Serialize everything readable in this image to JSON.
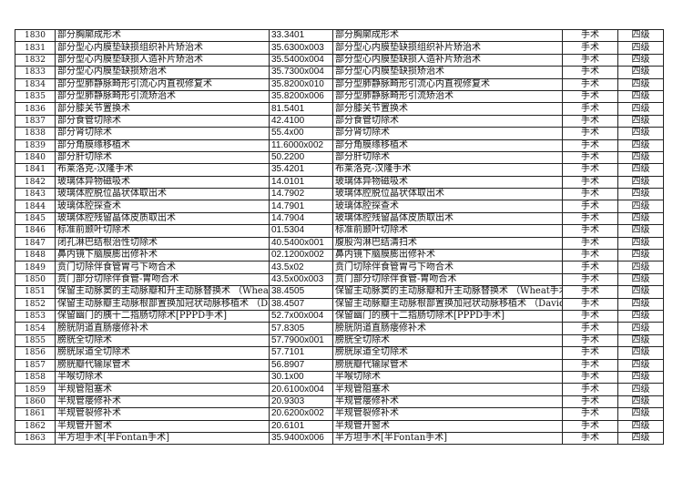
{
  "rows": [
    [
      "1830",
      "部分胸廓成形术",
      "33.3401",
      "部分胸廓成形术",
      "手术",
      "四级"
    ],
    [
      "1831",
      "部分型心内膜垫缺损组织补片矫治术",
      "35.6300x003",
      "部分型心内膜垫缺损组织补片矫治术",
      "手术",
      "四级"
    ],
    [
      "1832",
      "部分型心内膜垫缺损人造补片矫治术",
      "35.5400x004",
      "部分型心内膜垫缺损人造补片矫治术",
      "手术",
      "四级"
    ],
    [
      "1833",
      "部分型心内膜垫缺损矫治术",
      "35.7300x004",
      "部分型心内膜垫缺损矫治术",
      "手术",
      "四级"
    ],
    [
      "1834",
      "部分型肺静脉畸形引流心内直视修复术",
      "35.8200x010",
      "部分型肺静脉畸形引流心内直视修复术",
      "手术",
      "四级"
    ],
    [
      "1835",
      "部分型肺静脉畸形引流矫治术",
      "35.8200x006",
      "部分型肺静脉畸形引流矫治术",
      "手术",
      "四级"
    ],
    [
      "1836",
      "部分膝关节置换术",
      "81.5401",
      "部分膝关节置换术",
      "手术",
      "四级"
    ],
    [
      "1837",
      "部分食管切除术",
      "42.4100",
      "部分食管切除术",
      "手术",
      "四级"
    ],
    [
      "1838",
      "部分肾切除术",
      "55.4x00",
      "部分肾切除术",
      "手术",
      "四级"
    ],
    [
      "1839",
      "部分角膜缘移植术",
      "11.6000x002",
      "部分角膜缘移植术",
      "手术",
      "四级"
    ],
    [
      "1840",
      "部分肝切除术",
      "50.2200",
      "部分肝切除术",
      "手术",
      "四级"
    ],
    [
      "1841",
      "布莱洛克-汉隆手术",
      "35.4201",
      "布莱洛克-汉隆手术",
      "手术",
      "四级"
    ],
    [
      "1842",
      "玻璃体异物磁吸术",
      "14.0101",
      "玻璃体异物磁吸术",
      "手术",
      "四级"
    ],
    [
      "1843",
      "玻璃体腔脱位晶状体取出术",
      "14.7902",
      "玻璃体腔脱位晶状体取出术",
      "手术",
      "四级"
    ],
    [
      "1844",
      "玻璃体腔探查术",
      "14.7901",
      "玻璃体腔探查术",
      "手术",
      "四级"
    ],
    [
      "1845",
      "玻璃体腔残留晶体皮质取出术",
      "14.7904",
      "玻璃体腔残留晶体皮质取出术",
      "手术",
      "四级"
    ],
    [
      "1846",
      "标准前颞叶切除术",
      "01.5304",
      "标准前颞叶切除术",
      "手术",
      "四级"
    ],
    [
      "1847",
      "闭孔淋巴结根治性切除术",
      "40.5400x001",
      "腹股沟淋巴结清扫术",
      "手术",
      "四级"
    ],
    [
      "1848",
      "鼻内镜下脑膜膨出修补术",
      "02.1200x002",
      "鼻内镜下脑膜膨出修补术",
      "手术",
      "四级"
    ],
    [
      "1849",
      "贲门切除伴食管胃弓下吻合术",
      "43.5x02",
      "贲门切除伴食管胃弓下吻合术",
      "手术",
      "四级"
    ],
    [
      "1850",
      "贲门部分切除伴食管-胃吻合术",
      "43.5x00x003",
      "贲门部分切除伴食管-胃吻合术",
      "手术",
      "四级"
    ],
    [
      "1851",
      "保留主动脉窦的主动脉瓣和升主动脉替换术 （Wheat手术）",
      "38.4505",
      "保留主动脉窦的主动脉瓣和升主动脉替换术 （Wheat手术）",
      "手术",
      "四级"
    ],
    [
      "1852",
      "保留主动脉瓣主动脉根部置换加冠状动脉移植术 （David手术）",
      "38.4507",
      "保留主动脉瓣主动脉根部置换加冠状动脉移植术 （David手术）",
      "手术",
      "四级"
    ],
    [
      "1853",
      "保留幽门的胰十二指肠切除术[PPPD手术]",
      "52.7x00x004",
      "保留幽门的胰十二指肠切除术[PPPD手术]",
      "手术",
      "四级"
    ],
    [
      "1854",
      "膀胱阴道直肠瘘修补术",
      "57.8305",
      "膀胱阴道直肠瘘修补术",
      "手术",
      "四级"
    ],
    [
      "1855",
      "膀胱全切除术",
      "57.7900x001",
      "膀胱全切除术",
      "手术",
      "四级"
    ],
    [
      "1856",
      "膀胱尿道全切除术",
      "57.7101",
      "膀胱尿道全切除术",
      "手术",
      "四级"
    ],
    [
      "1857",
      "膀胱瓣代输尿管术",
      "56.8907",
      "膀胱瓣代输尿管术",
      "手术",
      "四级"
    ],
    [
      "1858",
      "半喉切除术",
      "30.1x00",
      "半喉切除术",
      "手术",
      "四级"
    ],
    [
      "1859",
      "半规管阻塞术",
      "20.6100x004",
      "半规管阻塞术",
      "手术",
      "四级"
    ],
    [
      "1860",
      "半规管瘘修补术",
      "20.9303",
      "半规管瘘修补术",
      "手术",
      "四级"
    ],
    [
      "1861",
      "半规管裂修补术",
      "20.6200x002",
      "半规管裂修补术",
      "手术",
      "四级"
    ],
    [
      "1862",
      "半规管开窗术",
      "20.6101",
      "半规管开窗术",
      "手术",
      "四级"
    ],
    [
      "1863",
      "半方坦手术[半Fontan手术]",
      "35.9400x006",
      "半方坦手术[半Fontan手术]",
      "手术",
      "四级"
    ]
  ]
}
